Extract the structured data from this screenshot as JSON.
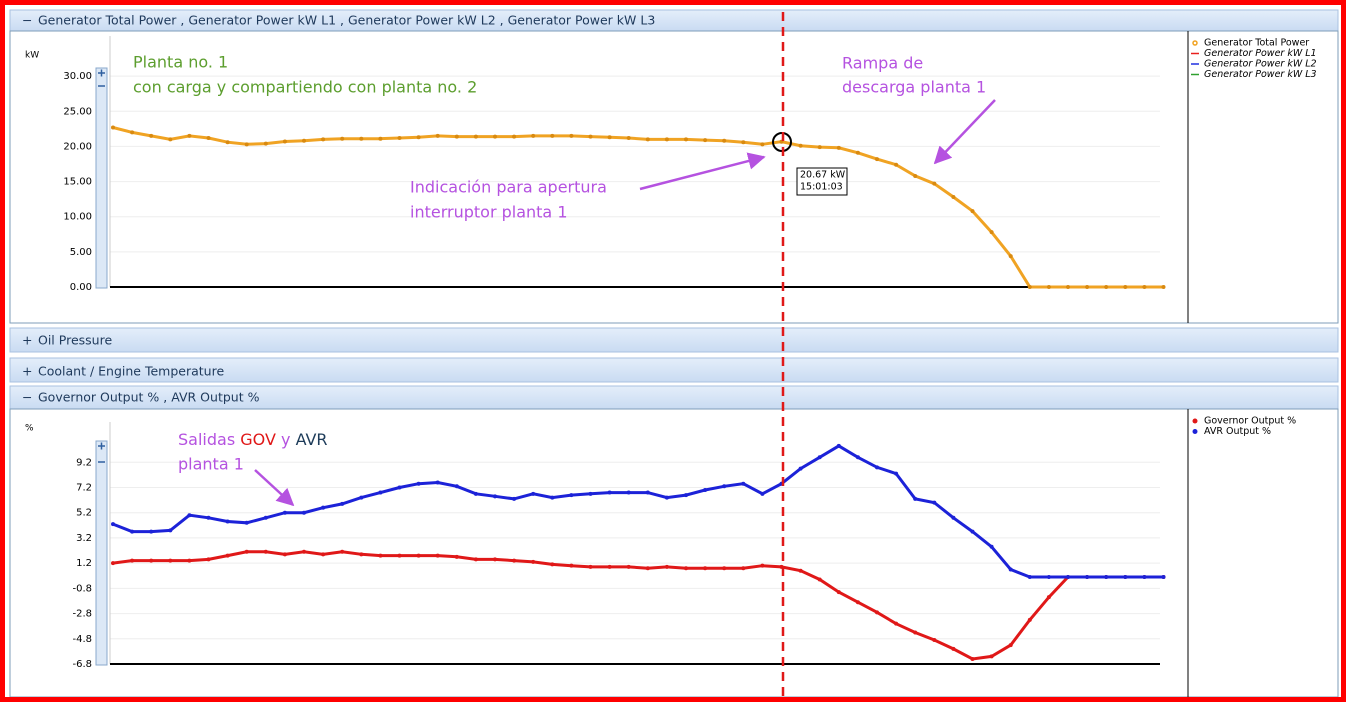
{
  "chart_data": [
    {
      "type": "line",
      "title": "Generator Total Power , Generator Power kW L1 , Generator Power kW L2 , Generator Power kW L3",
      "toggle": "−",
      "y_label": "kW",
      "ylim": [
        0,
        35
      ],
      "yticks": [
        {
          "value": 0,
          "label": "0.00"
        },
        {
          "value": 5,
          "label": "5.00"
        },
        {
          "value": 10,
          "label": "10.00"
        },
        {
          "value": 15,
          "label": "15.00"
        },
        {
          "value": 20,
          "label": "20.00"
        },
        {
          "value": 25,
          "label": "25.00"
        },
        {
          "value": 30,
          "label": "30.00"
        }
      ],
      "grid": true,
      "legend": "right",
      "series": [
        {
          "name": "Generator Total Power",
          "color": "#f0a323",
          "values": [
            22.7,
            22.0,
            21.5,
            21.0,
            21.5,
            21.2,
            20.6,
            20.3,
            20.4,
            20.7,
            20.8,
            21.0,
            21.1,
            21.1,
            21.1,
            21.2,
            21.3,
            21.5,
            21.4,
            21.4,
            21.4,
            21.4,
            21.5,
            21.5,
            21.5,
            21.4,
            21.3,
            21.2,
            21.0,
            21.0,
            21.0,
            20.9,
            20.8,
            20.6,
            20.3,
            20.67,
            20.1,
            19.9,
            19.8,
            19.1,
            18.2,
            17.4,
            15.8,
            14.7,
            12.8,
            10.8,
            7.8,
            4.4,
            0,
            0,
            0,
            0,
            0,
            0,
            0,
            0
          ]
        },
        {
          "name": "Generator Power kW L1",
          "color": "#e8201e"
        },
        {
          "name": "Generator Power kW L2",
          "color": "#2030e0"
        },
        {
          "name": "Generator Power kW L3",
          "color": "#30a030"
        }
      ],
      "tooltip": {
        "value": "20.67 kW",
        "time": "15:01:03"
      },
      "annotations": {
        "plant_line1": "Planta no. 1",
        "plant_line2": "con carga y compartiendo con planta no. 2",
        "ramp_line1": "Rampa de",
        "ramp_line2": "descarga planta 1",
        "breaker_line1": "Indicación para apertura",
        "breaker_line2": "interruptor planta 1"
      }
    },
    {
      "type": "line",
      "title": "Governor Output % , AVR Output %",
      "toggle": "−",
      "y_label": "%",
      "ylim": [
        -6.8,
        12
      ],
      "yticks": [
        -6.8,
        -4.8,
        -2.8,
        -0.8,
        1.2,
        3.2,
        5.2,
        7.2,
        9.2
      ],
      "grid": true,
      "legend": "right",
      "series": [
        {
          "name": "Governor Output %",
          "color": "#e01818",
          "values": [
            1.2,
            1.4,
            1.4,
            1.4,
            1.4,
            1.5,
            1.8,
            2.1,
            2.1,
            1.9,
            2.1,
            1.9,
            2.1,
            1.9,
            1.8,
            1.8,
            1.8,
            1.8,
            1.7,
            1.5,
            1.5,
            1.4,
            1.3,
            1.1,
            1.0,
            0.9,
            0.9,
            0.9,
            0.8,
            0.9,
            0.8,
            0.8,
            0.8,
            0.8,
            1.0,
            0.9,
            0.6,
            -0.1,
            -1.1,
            -1.9,
            -2.7,
            -3.6,
            -4.3,
            -4.9,
            -5.6,
            -6.4,
            -6.2,
            -5.3,
            -3.3,
            -1.5,
            0.1,
            0.1,
            0.1,
            0.1,
            0.1,
            0.1
          ]
        },
        {
          "name": "AVR Output %",
          "color": "#1c22d8",
          "values": [
            4.3,
            3.7,
            3.7,
            3.8,
            5.0,
            4.8,
            4.5,
            4.4,
            4.8,
            5.2,
            5.2,
            5.6,
            5.9,
            6.4,
            6.8,
            7.2,
            7.5,
            7.6,
            7.3,
            6.7,
            6.5,
            6.3,
            6.7,
            6.4,
            6.6,
            6.7,
            6.8,
            6.8,
            6.8,
            6.4,
            6.6,
            7.0,
            7.3,
            7.5,
            6.7,
            7.5,
            8.7,
            9.6,
            10.5,
            9.6,
            8.8,
            8.3,
            6.3,
            6.0,
            4.8,
            3.7,
            2.5,
            0.7,
            0.1,
            0.1,
            0.1,
            0.1,
            0.1,
            0.1,
            0.1,
            0.1
          ]
        }
      ],
      "annotations": {
        "outputs_word": "Salidas",
        "gov": "GOV",
        "and": "y",
        "avr": "AVR",
        "plant": "planta 1"
      }
    }
  ],
  "collapsed_panels": [
    {
      "toggle": "+",
      "title": "Oil Pressure"
    },
    {
      "toggle": "+",
      "title": "Coolant / Engine Temperature"
    }
  ]
}
